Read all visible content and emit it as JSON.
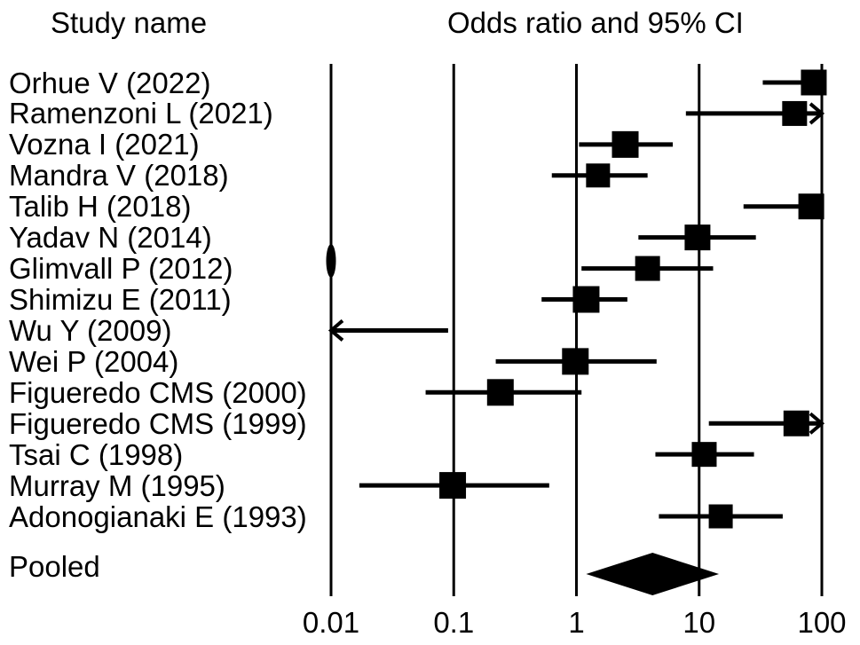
{
  "header": {
    "study_col": "Study name",
    "plot_col": "Odds ratio and 95% CI"
  },
  "chart_data": {
    "type": "forest",
    "x_scale": "log",
    "x_range": [
      0.01,
      100
    ],
    "x_ticks": [
      0.01,
      0.1,
      1,
      10,
      100
    ],
    "x_tick_labels": [
      "0.01",
      "0.1",
      "1",
      "10",
      "100"
    ],
    "marker_color": "#000000",
    "studies": [
      {
        "label": "Orhue V (2022)",
        "or": 86,
        "ci_low": 33,
        "ci_high": 100,
        "arrow_low": false,
        "arrow_high": true,
        "marker_px": 29
      },
      {
        "label": "Ramenzoni L (2021)",
        "or": 60,
        "ci_low": 7.8,
        "ci_high": 100,
        "arrow_low": false,
        "arrow_high": true,
        "marker_px": 28
      },
      {
        "label": "Vozna I (2021)",
        "or": 2.5,
        "ci_low": 1.05,
        "ci_high": 6.1,
        "arrow_low": false,
        "arrow_high": false,
        "marker_px": 30
      },
      {
        "label": "Mandra V (2018)",
        "or": 1.5,
        "ci_low": 0.63,
        "ci_high": 3.8,
        "arrow_low": false,
        "arrow_high": false,
        "marker_px": 27
      },
      {
        "label": "Talib H (2018)",
        "or": 82,
        "ci_low": 23,
        "ci_high": 97,
        "arrow_low": false,
        "arrow_high": false,
        "marker_px": 29
      },
      {
        "label": "Yadav N (2014)",
        "or": 9.7,
        "ci_low": 3.2,
        "ci_high": 29,
        "arrow_low": false,
        "arrow_high": false,
        "marker_px": 29
      },
      {
        "label": "Glimvall P (2012)",
        "or": 3.8,
        "ci_low": 1.1,
        "ci_high": 13,
        "arrow_low": false,
        "arrow_high": false,
        "marker_px": 28
      },
      {
        "label": "Shimizu E (2011)",
        "or": 1.2,
        "ci_low": 0.52,
        "ci_high": 2.6,
        "arrow_low": false,
        "arrow_high": false,
        "marker_px": 30
      },
      {
        "label": "Wu Y (2009)",
        "or": null,
        "ci_low": 0.01,
        "ci_high": 0.09,
        "arrow_low": true,
        "arrow_high": false,
        "marker_px": 0
      },
      {
        "label": "Wei P (2004)",
        "or": 0.98,
        "ci_low": 0.22,
        "ci_high": 4.5,
        "arrow_low": false,
        "arrow_high": false,
        "marker_px": 30
      },
      {
        "label": "Figueredo CMS (2000)",
        "or": 0.24,
        "ci_low": 0.059,
        "ci_high": 1.1,
        "arrow_low": false,
        "arrow_high": false,
        "marker_px": 30
      },
      {
        "label": "Figueredo CMS (1999)",
        "or": 62,
        "ci_low": 12,
        "ci_high": 100,
        "arrow_low": false,
        "arrow_high": true,
        "marker_px": 29
      },
      {
        "label": "Tsai C (1998)",
        "or": 11,
        "ci_low": 4.4,
        "ci_high": 28,
        "arrow_low": false,
        "arrow_high": false,
        "marker_px": 28
      },
      {
        "label": "Murray M (1995)",
        "or": 0.098,
        "ci_low": 0.017,
        "ci_high": 0.6,
        "arrow_low": false,
        "arrow_high": false,
        "marker_px": 30
      },
      {
        "label": "Adonogianaki E (1993)",
        "or": 15,
        "ci_low": 4.7,
        "ci_high": 48,
        "arrow_low": false,
        "arrow_high": false,
        "marker_px": 27
      }
    ],
    "pooled": {
      "label": "Pooled",
      "or": 4.2,
      "ci_low": 1.2,
      "ci_high": 14.5
    },
    "annotations": [
      {
        "type": "small-lens-mark-on-axis",
        "x": 0.01,
        "y": 294
      }
    ]
  }
}
